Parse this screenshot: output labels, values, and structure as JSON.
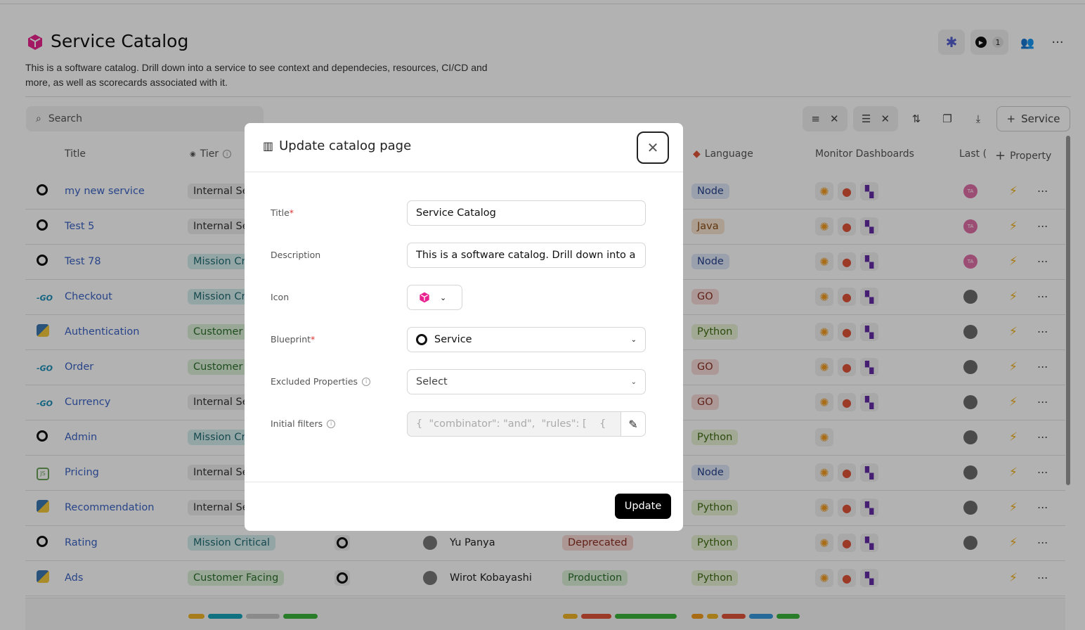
{
  "page": {
    "title": "Service Catalog",
    "description": "This is a software catalog. Drill down into a service to see context and dependecies, resources, CI/CD and more, as well as scorecards associated with it.",
    "run_count": "1",
    "icon_color": "#e8238f"
  },
  "toolbar": {
    "search_placeholder": "Search",
    "add_label": "Service"
  },
  "columns": {
    "title": "Title",
    "tier": "Tier",
    "language": "Language",
    "monitor": "Monitor Dashboards",
    "last": "Last (",
    "property": "Property"
  },
  "rows": [
    {
      "icon": "github",
      "title": "my new service",
      "tier": "Internal Ser",
      "lang": "Node",
      "avatar": "TA",
      "mon": 3
    },
    {
      "icon": "github",
      "title": "Test 5",
      "tier": "Internal Ser",
      "lang": "Java",
      "avatar": "TA",
      "mon": 3
    },
    {
      "icon": "github",
      "title": "Test 78",
      "tier": "Mission Crit",
      "lang": "Node",
      "avatar": "TA",
      "mon": 3
    },
    {
      "icon": "go",
      "title": "Checkout",
      "tier": "Mission Crit",
      "lang": "GO",
      "avatar": "",
      "mon": 3
    },
    {
      "icon": "python",
      "title": "Authentication",
      "tier": "Customer F",
      "lang": "Python",
      "avatar": "",
      "mon": 3
    },
    {
      "icon": "go",
      "title": "Order",
      "tier": "Customer F",
      "lang": "GO",
      "avatar": "",
      "mon": 3
    },
    {
      "icon": "go",
      "title": "Currency",
      "tier": "Internal Ser",
      "lang": "GO",
      "avatar": "",
      "mon": 3
    },
    {
      "icon": "github",
      "title": "Admin",
      "tier": "Mission Crit",
      "lang": "Python",
      "avatar": "",
      "mon": 1
    },
    {
      "icon": "nodejs",
      "title": "Pricing",
      "tier": "Internal Ser",
      "lang": "Node",
      "avatar": "",
      "mon": 3
    },
    {
      "icon": "python",
      "title": "Recommendation",
      "tier": "Internal Ser",
      "lang": "Python",
      "avatar": "",
      "mon": 3
    },
    {
      "icon": "github",
      "title": "Rating",
      "tier": "Mission Critical",
      "owner": "Yu Panya",
      "lifecycle": "Deprecated",
      "lang": "Python",
      "avatar": "",
      "mon": 3
    },
    {
      "icon": "python",
      "title": "Ads",
      "tier": "Customer Facing",
      "owner": "Wirot Kobayashi",
      "lifecycle": "Production",
      "lang": "Python",
      "avatar": "",
      "mon": 3
    }
  ],
  "modal": {
    "title": "Update catalog page",
    "fields": {
      "title_label": "Title",
      "title_value": "Service Catalog",
      "desc_label": "Description",
      "desc_value": "This is a software catalog. Drill down into a servic",
      "icon_label": "Icon",
      "blueprint_label": "Blueprint",
      "blueprint_value": "Service",
      "excluded_label": "Excluded Properties",
      "excluded_placeholder": "Select",
      "filters_label": "Initial filters",
      "filters_value": "{  \"combinator\": \"and\",  \"rules\": [    {      \"opera"
    },
    "update_label": "Update"
  },
  "colors": {
    "link": "#3a62c4",
    "accent": "#e8238f"
  }
}
